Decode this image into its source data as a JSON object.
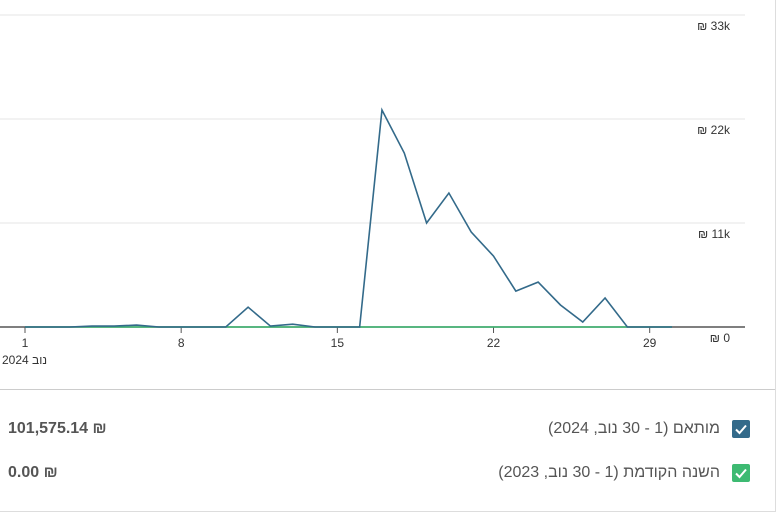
{
  "chart_data": {
    "type": "line",
    "x": [
      1,
      2,
      3,
      4,
      5,
      6,
      7,
      8,
      9,
      10,
      11,
      12,
      13,
      14,
      15,
      16,
      17,
      18,
      19,
      20,
      21,
      22,
      23,
      24,
      25,
      26,
      27,
      28,
      29,
      30
    ],
    "xlim": [
      1,
      30
    ],
    "xticks": [
      1,
      8,
      15,
      22,
      29
    ],
    "x_period_label": "נוב 2024",
    "ylim": [
      0,
      33000
    ],
    "yticks": [
      {
        "value": 0,
        "label": "₪ 0"
      },
      {
        "value": 11000,
        "label": "₪ 11k"
      },
      {
        "value": 22000,
        "label": "₪ 22k"
      },
      {
        "value": 33000,
        "label": "₪ 33k"
      }
    ],
    "grid": true,
    "series": [
      {
        "name": "מותאם (1 - 30 נוב, 2024)",
        "color": "#336a8a",
        "total": "₪ 101,575.14",
        "values": [
          0,
          0,
          0,
          100,
          100,
          200,
          0,
          0,
          0,
          0,
          2100,
          100,
          300,
          0,
          0,
          0,
          22950,
          18400,
          11000,
          14170,
          10050,
          7500,
          3800,
          4750,
          2330,
          530,
          3070,
          0,
          0,
          0
        ]
      },
      {
        "name": "השנה הקודמת (1 - 30 נוב, 2023)",
        "color": "#3dba72",
        "total": "₪ 0.00",
        "values": [
          0,
          0,
          0,
          0,
          0,
          0,
          0,
          0,
          0,
          0,
          0,
          0,
          0,
          0,
          0,
          0,
          0,
          0,
          0,
          0,
          0,
          0,
          0,
          0,
          0,
          0,
          0,
          0,
          0,
          0
        ]
      }
    ]
  }
}
